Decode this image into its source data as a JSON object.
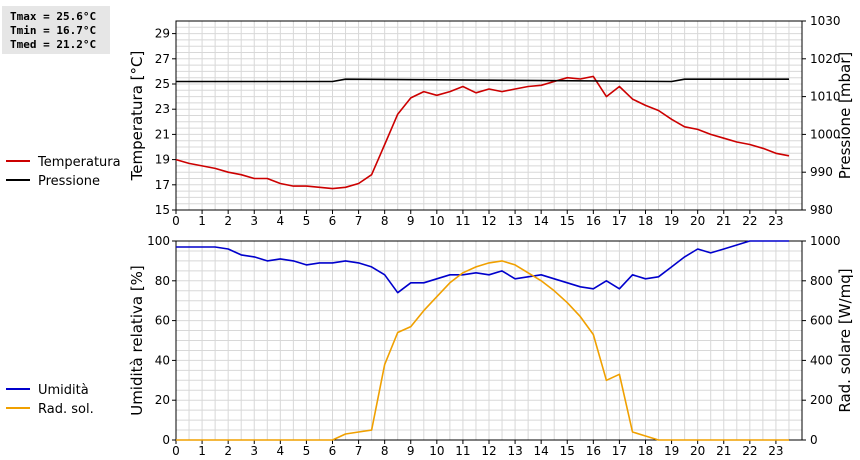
{
  "stats": {
    "tmax": "Tmax = 25.6°C",
    "tmin": "Tmin = 16.7°C",
    "tmed": "Tmed = 21.2°C"
  },
  "chart_data": [
    {
      "type": "line",
      "xlim": [
        0,
        24
      ],
      "x_ticks": [
        "0",
        "1",
        "2",
        "3",
        "4",
        "5",
        "6",
        "7",
        "8",
        "9",
        "10",
        "11",
        "12",
        "13",
        "14",
        "15",
        "16",
        "17",
        "18",
        "19",
        "20",
        "21",
        "22",
        "23"
      ],
      "ylabel": "Temperatura [°C]",
      "ylim": [
        15,
        30
      ],
      "y_ticks": [
        "15",
        "17",
        "19",
        "21",
        "23",
        "25",
        "27",
        "29"
      ],
      "y2label": "Pressione [mbar]",
      "y2lim": [
        980,
        1030
      ],
      "y2_ticks": [
        "980",
        "990",
        "1000",
        "1010",
        "1020",
        "1030"
      ],
      "grid": true,
      "legend_position": "left",
      "series": [
        {
          "name": "Temperatura",
          "color": "#cc0000",
          "axis": "left",
          "x": [
            0,
            0.5,
            1,
            1.5,
            2,
            2.5,
            3,
            3.5,
            4,
            4.5,
            5,
            5.5,
            6,
            6.5,
            7,
            7.5,
            8,
            8.5,
            9,
            9.5,
            10,
            10.5,
            11,
            11.5,
            12,
            12.5,
            13,
            13.5,
            14,
            14.5,
            15,
            15.5,
            16,
            16.5,
            17,
            17.5,
            18,
            18.5,
            19,
            19.5,
            20,
            20.5,
            21,
            21.5,
            22,
            22.5,
            23,
            23.5
          ],
          "values": [
            19.0,
            18.7,
            18.5,
            18.3,
            18.0,
            17.8,
            17.5,
            17.5,
            17.1,
            16.9,
            16.9,
            16.8,
            16.7,
            16.8,
            17.1,
            17.8,
            20.2,
            22.6,
            23.9,
            24.4,
            24.1,
            24.4,
            24.8,
            24.3,
            24.6,
            24.4,
            24.6,
            24.8,
            24.9,
            25.2,
            25.5,
            25.4,
            25.6,
            24.0,
            24.8,
            23.8,
            23.3,
            22.9,
            22.2,
            21.6,
            21.4,
            21.0,
            20.7,
            20.4,
            20.2,
            19.9,
            19.5,
            19.3
          ]
        },
        {
          "name": "Pressione",
          "color": "#000000",
          "axis": "right",
          "x": [
            0,
            6,
            6.5,
            19,
            19.5,
            23.5
          ],
          "values": [
            1014,
            1014,
            1014.6,
            1014,
            1014.6,
            1014.6
          ]
        }
      ]
    },
    {
      "type": "line",
      "xlim": [
        0,
        24
      ],
      "x_ticks": [
        "0",
        "1",
        "2",
        "3",
        "4",
        "5",
        "6",
        "7",
        "8",
        "9",
        "10",
        "11",
        "12",
        "13",
        "14",
        "15",
        "16",
        "17",
        "18",
        "19",
        "20",
        "21",
        "22",
        "23"
      ],
      "ylabel": "Umidità relativa [%]",
      "ylim": [
        0,
        100
      ],
      "y_ticks": [
        "0",
        "20",
        "40",
        "60",
        "80",
        "100"
      ],
      "y2label": "Rad. solare [W/mq]",
      "y2lim": [
        0,
        1000
      ],
      "y2_ticks": [
        "0",
        "200",
        "400",
        "600",
        "800",
        "1000"
      ],
      "grid": true,
      "legend_position": "left",
      "series": [
        {
          "name": "Umidità",
          "color": "#0000cc",
          "axis": "left",
          "x": [
            0,
            0.5,
            1,
            1.5,
            2,
            2.5,
            3,
            3.5,
            4,
            4.5,
            5,
            5.5,
            6,
            6.5,
            7,
            7.5,
            8,
            8.5,
            9,
            9.5,
            10,
            10.5,
            11,
            11.5,
            12,
            12.5,
            13,
            13.5,
            14,
            14.5,
            15,
            15.5,
            16,
            16.5,
            17,
            17.5,
            18,
            18.5,
            19,
            19.5,
            20,
            20.5,
            21,
            21.5,
            22,
            22.5,
            23,
            23.5
          ],
          "values": [
            97,
            97,
            97,
            97,
            96,
            93,
            92,
            90,
            91,
            90,
            88,
            89,
            89,
            90,
            89,
            87,
            83,
            74,
            79,
            79,
            81,
            83,
            83,
            84,
            83,
            85,
            81,
            82,
            83,
            81,
            79,
            77,
            76,
            80,
            76,
            83,
            81,
            82,
            87,
            92,
            96,
            94,
            96,
            98,
            100,
            100,
            100,
            100
          ]
        },
        {
          "name": "Rad. sol.",
          "color": "#f0a000",
          "axis": "right",
          "x": [
            0,
            0.5,
            1,
            1.5,
            2,
            2.5,
            3,
            3.5,
            4,
            4.5,
            5,
            5.5,
            6,
            6.5,
            7,
            7.5,
            8,
            8.5,
            9,
            9.5,
            10,
            10.5,
            11,
            11.5,
            12,
            12.5,
            13,
            13.5,
            14,
            14.5,
            15,
            15.5,
            16,
            16.5,
            17,
            17.5,
            18,
            18.5,
            19,
            19.5,
            20,
            20.5,
            21,
            21.5,
            22,
            22.5,
            23,
            23.5
          ],
          "values": [
            0,
            0,
            0,
            0,
            0,
            0,
            0,
            0,
            0,
            0,
            0,
            0,
            0,
            30,
            40,
            50,
            380,
            540,
            570,
            650,
            720,
            790,
            840,
            870,
            890,
            900,
            880,
            840,
            800,
            750,
            690,
            620,
            530,
            300,
            330,
            40,
            20,
            0,
            0,
            0,
            0,
            0,
            0,
            0,
            0,
            0,
            0,
            0
          ]
        }
      ]
    }
  ]
}
